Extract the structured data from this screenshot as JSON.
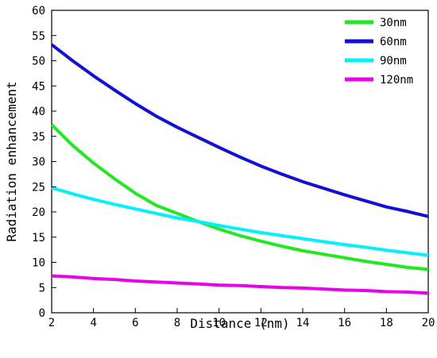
{
  "chart_data": {
    "type": "line",
    "title": "",
    "xlabel": "Distance (nm)",
    "ylabel": "Radiation enhancement",
    "xlim": [
      2,
      20
    ],
    "ylim": [
      0,
      60
    ],
    "xticks": [
      2,
      4,
      6,
      8,
      10,
      12,
      14,
      16,
      18,
      20
    ],
    "yticks": [
      0,
      5,
      10,
      15,
      20,
      25,
      30,
      35,
      40,
      45,
      50,
      55,
      60
    ],
    "grid": false,
    "legend_position": "top-right",
    "x": [
      2,
      3,
      4,
      5,
      6,
      7,
      8,
      9,
      10,
      11,
      12,
      13,
      14,
      15,
      16,
      17,
      18,
      19,
      20
    ],
    "series": [
      {
        "name": "30nm",
        "color": "#22e822",
        "values": [
          37.3,
          33.2,
          29.7,
          26.6,
          23.7,
          21.3,
          19.7,
          18.1,
          16.6,
          15.3,
          14.2,
          13.2,
          12.3,
          11.6,
          10.9,
          10.2,
          9.6,
          9.0,
          8.6
        ]
      },
      {
        "name": "60nm",
        "color": "#1010d8",
        "values": [
          53.2,
          50.0,
          47.0,
          44.2,
          41.5,
          39.0,
          36.8,
          34.8,
          32.8,
          30.9,
          29.1,
          27.5,
          26.0,
          24.7,
          23.4,
          22.2,
          21.0,
          20.1,
          19.1
        ]
      },
      {
        "name": "90nm",
        "color": "#00f0ff",
        "values": [
          24.8,
          23.6,
          22.5,
          21.5,
          20.6,
          19.7,
          18.8,
          18.1,
          17.3,
          16.6,
          15.9,
          15.3,
          14.7,
          14.1,
          13.5,
          13.0,
          12.4,
          11.9,
          11.4
        ]
      },
      {
        "name": "120nm",
        "color": "#e800e8",
        "values": [
          7.3,
          7.1,
          6.8,
          6.6,
          6.3,
          6.1,
          5.9,
          5.7,
          5.5,
          5.4,
          5.2,
          5.0,
          4.9,
          4.7,
          4.5,
          4.4,
          4.2,
          4.1,
          3.9
        ]
      }
    ]
  }
}
